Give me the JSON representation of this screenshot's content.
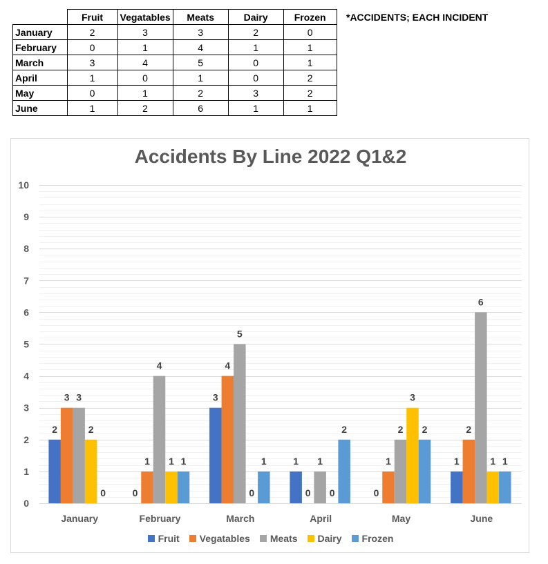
{
  "table": {
    "headers": [
      "Fruit",
      "Vegatables",
      "Meats",
      "Dairy",
      "Frozen"
    ],
    "rows": [
      {
        "month": "January",
        "values": [
          "2",
          "3",
          "3",
          "2",
          "0"
        ]
      },
      {
        "month": "February",
        "values": [
          "0",
          "1",
          "4",
          "1",
          "1"
        ]
      },
      {
        "month": "March",
        "values": [
          "3",
          "4",
          "5",
          "0",
          "1"
        ]
      },
      {
        "month": "April",
        "values": [
          "1",
          "0",
          "1",
          "0",
          "2"
        ]
      },
      {
        "month": "May",
        "values": [
          "0",
          "1",
          "2",
          "3",
          "2"
        ]
      },
      {
        "month": "June",
        "values": [
          "1",
          "2",
          "6",
          "1",
          "1"
        ]
      }
    ]
  },
  "note": "*ACCIDENTS; EACH INCIDENT",
  "chart_data": {
    "type": "bar",
    "title": "Accidents By Line 2022 Q1&2",
    "xlabel": "",
    "ylabel": "",
    "categories": [
      "January",
      "February",
      "March",
      "April",
      "May",
      "June"
    ],
    "ylim": [
      0,
      10
    ],
    "yticks": [
      0,
      1,
      2,
      3,
      4,
      5,
      6,
      7,
      8,
      9,
      10
    ],
    "grid": true,
    "legend_position": "bottom",
    "data_labels": true,
    "series": [
      {
        "name": "Fruit",
        "color": "#4472C4",
        "values": [
          2,
          0,
          3,
          1,
          0,
          1
        ]
      },
      {
        "name": "Vegatables",
        "color": "#ED7D31",
        "values": [
          3,
          1,
          4,
          0,
          1,
          2
        ]
      },
      {
        "name": "Meats",
        "color": "#A5A5A5",
        "values": [
          3,
          4,
          5,
          1,
          2,
          6
        ]
      },
      {
        "name": "Dairy",
        "color": "#FFC000",
        "values": [
          2,
          1,
          0,
          0,
          3,
          1
        ]
      },
      {
        "name": "Frozen",
        "color": "#5B9BD5",
        "values": [
          0,
          1,
          1,
          2,
          2,
          1
        ]
      }
    ]
  }
}
